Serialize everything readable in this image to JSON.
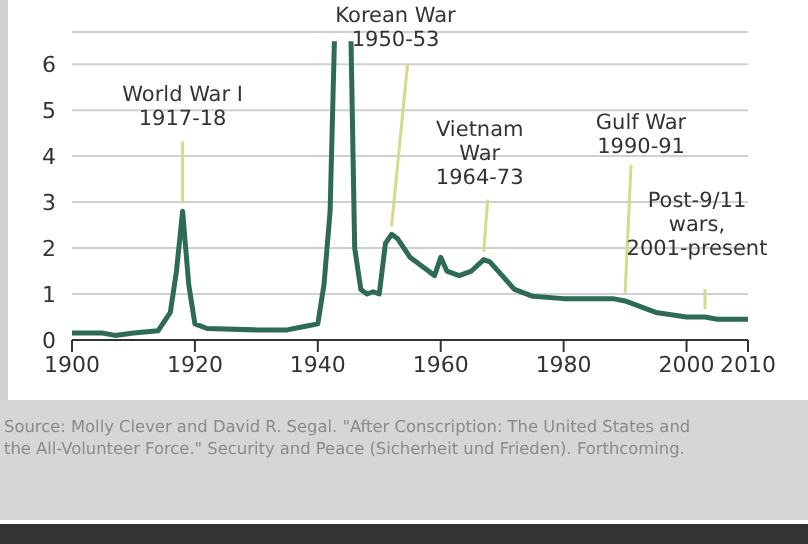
{
  "chart_data": {
    "type": "line",
    "x": [
      1900,
      1905,
      1907,
      1910,
      1914,
      1916,
      1917,
      1918,
      1919,
      1920,
      1922,
      1930,
      1935,
      1938,
      1940,
      1941,
      1942,
      1942.7,
      1944,
      1945.4,
      1946,
      1947,
      1948,
      1949,
      1950,
      1951,
      1952,
      1953,
      1955,
      1958,
      1959,
      1960,
      1961,
      1963,
      1965,
      1967,
      1968,
      1970,
      1972,
      1975,
      1980,
      1988,
      1990,
      1995,
      2000,
      2003,
      2005,
      2010
    ],
    "series": [
      {
        "color": "#2e6b55",
        "values": [
          0.15,
          0.15,
          0.1,
          0.15,
          0.2,
          0.6,
          1.5,
          2.8,
          1.2,
          0.35,
          0.25,
          0.22,
          0.22,
          0.3,
          0.35,
          1.2,
          2.8,
          6.5,
          null,
          6.5,
          2.0,
          1.1,
          1.0,
          1.05,
          1.0,
          2.1,
          2.3,
          2.2,
          1.8,
          1.5,
          1.4,
          1.8,
          1.5,
          1.4,
          1.5,
          1.75,
          1.7,
          1.4,
          1.1,
          0.95,
          0.9,
          0.9,
          0.85,
          0.6,
          0.5,
          0.5,
          0.45,
          0.45
        ]
      }
    ],
    "xlim": [
      1900,
      2010
    ],
    "xticks": [
      1900,
      1920,
      1940,
      1960,
      1980,
      2000,
      2010
    ],
    "ylim": [
      0,
      6.7
    ],
    "yticks": [
      0,
      1,
      2,
      3,
      4,
      5,
      6
    ],
    "grid": "y",
    "legend": false,
    "marker": "none",
    "line_style": "solid",
    "annotations": [
      {
        "text": "World War I\n1917-18",
        "x": 1918,
        "y": 2.8
      },
      {
        "text": "Korean War\n1950-53",
        "x": 1952,
        "y": 2.3
      },
      {
        "text": "Vietnam\nWar\n1964-73",
        "x": 1967,
        "y": 1.75
      },
      {
        "text": "Gulf War\n1990-91",
        "x": 1990,
        "y": 0.85
      },
      {
        "text": "Post-9/11\nwars,\n2001-present",
        "x": 2003,
        "y": 0.5
      },
      "Source: Molly Clever and David R. Segal. \"After Conscription: The United States and\nthe All-Volunteer Force.\" Security and Peace (Sicherheit und Frieden). Forthcoming."
    ]
  }
}
